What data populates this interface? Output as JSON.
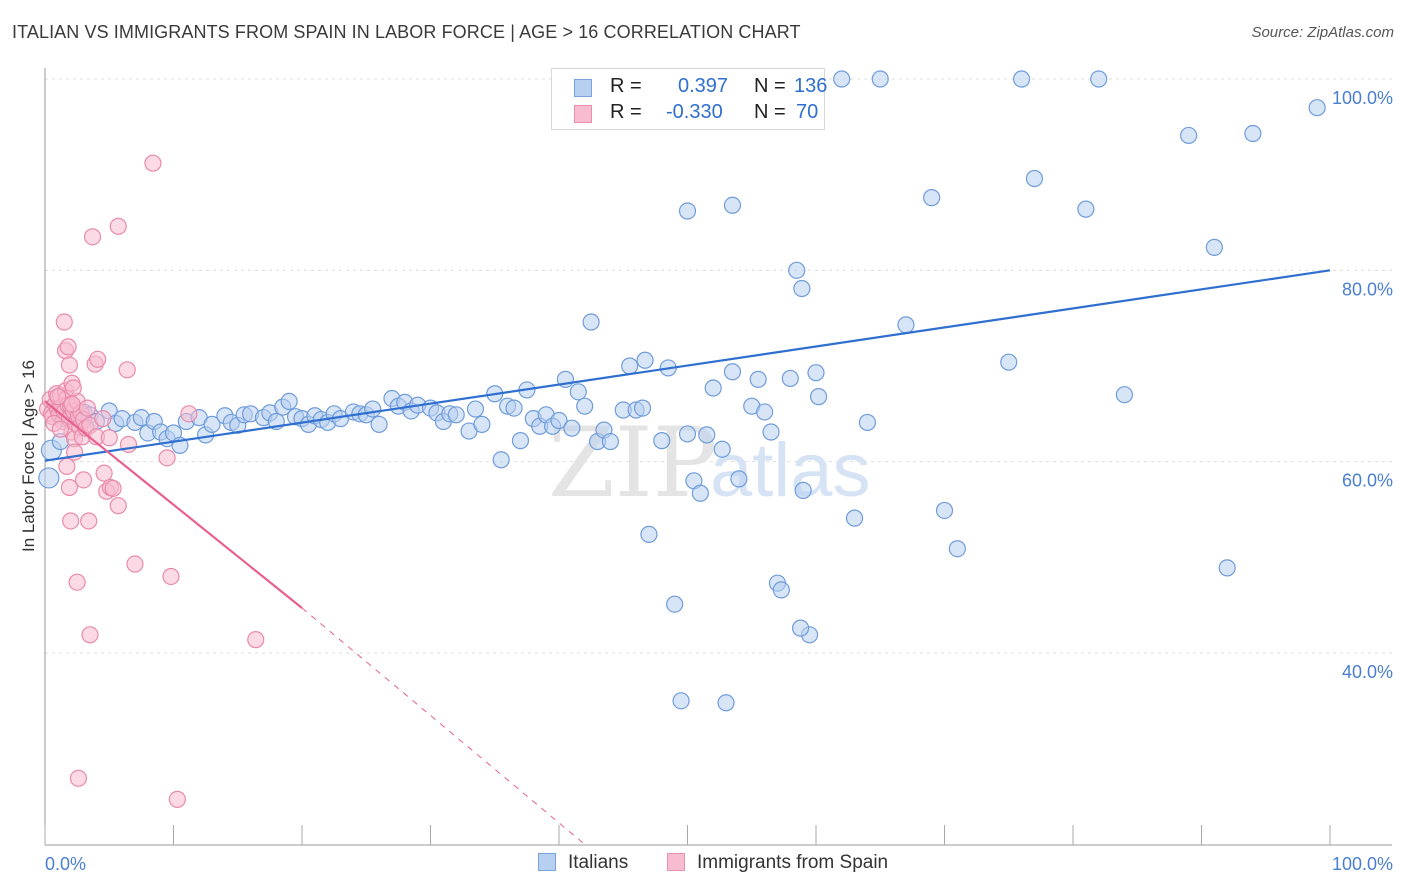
{
  "title": "ITALIAN VS IMMIGRANTS FROM SPAIN IN LABOR FORCE | AGE > 16 CORRELATION CHART",
  "source": "Source: ZipAtlas.com",
  "watermark": {
    "zip": "ZIP",
    "atlas": "atlas"
  },
  "colors": {
    "blue": "#2f6fd0",
    "blue_fill": "#b8d0f0",
    "pink": "#e8608e",
    "pink_fill": "#f7bcd0",
    "grid": "#dddddd",
    "tick_text": "#4a7fd0"
  },
  "legend": {
    "rows": [
      {
        "r_label": "R =",
        "r_value": "0.397",
        "n_label": "N =",
        "n_value": "136"
      },
      {
        "r_label": "R =",
        "r_value": "-0.330",
        "n_label": "N =",
        "n_value": "70"
      }
    ]
  },
  "bottom_legend": {
    "italians": "Italians",
    "spain": "Immigrants from Spain"
  },
  "chart_data": {
    "type": "scatter",
    "title": "ITALIAN VS IMMIGRANTS FROM SPAIN IN LABOR FORCE | AGE > 16 CORRELATION CHART",
    "xlabel": "",
    "ylabel": "In Labor Force | Age > 16",
    "xlim": [
      0,
      100
    ],
    "ylim": [
      20,
      102
    ],
    "x_tick_labels": [
      "0.0%",
      "100.0%"
    ],
    "y_ticks": [
      40,
      60,
      80,
      100
    ],
    "y_tick_labels": [
      "40.0%",
      "60.0%",
      "80.0%",
      "100.0%"
    ],
    "grid": true,
    "series": [
      {
        "name": "Italians",
        "color": "#2f6fd0",
        "points": [
          [
            0.3,
            58.3
          ],
          [
            0.5,
            61.2
          ],
          [
            1.2,
            62.1
          ],
          [
            1.5,
            64.5
          ],
          [
            2.0,
            65.0
          ],
          [
            2.5,
            64.8
          ],
          [
            3.0,
            65.2
          ],
          [
            3.5,
            64.9
          ],
          [
            4.0,
            64.2
          ],
          [
            5.0,
            65.3
          ],
          [
            5.5,
            64.0
          ],
          [
            6.0,
            64.5
          ],
          [
            7.0,
            64.1
          ],
          [
            7.5,
            64.6
          ],
          [
            8.0,
            63.0
          ],
          [
            8.5,
            64.2
          ],
          [
            9.0,
            63.1
          ],
          [
            9.5,
            62.4
          ],
          [
            10.0,
            63.0
          ],
          [
            10.5,
            61.7
          ],
          [
            11.0,
            64.2
          ],
          [
            12.0,
            64.6
          ],
          [
            12.5,
            62.8
          ],
          [
            13.0,
            63.9
          ],
          [
            14.0,
            64.8
          ],
          [
            14.5,
            64.1
          ],
          [
            15.0,
            63.8
          ],
          [
            15.5,
            64.9
          ],
          [
            16.0,
            65.0
          ],
          [
            17.0,
            64.6
          ],
          [
            17.5,
            65.1
          ],
          [
            18.0,
            64.2
          ],
          [
            18.5,
            65.7
          ],
          [
            19.0,
            66.3
          ],
          [
            19.5,
            64.7
          ],
          [
            20.0,
            64.5
          ],
          [
            20.5,
            63.9
          ],
          [
            21.0,
            64.8
          ],
          [
            21.5,
            64.4
          ],
          [
            22.0,
            64.1
          ],
          [
            22.5,
            65.0
          ],
          [
            23.0,
            64.5
          ],
          [
            24.0,
            65.2
          ],
          [
            24.5,
            65.0
          ],
          [
            25.0,
            64.9
          ],
          [
            25.5,
            65.5
          ],
          [
            26.0,
            63.9
          ],
          [
            27.0,
            66.6
          ],
          [
            27.5,
            65.8
          ],
          [
            28.0,
            66.2
          ],
          [
            28.5,
            65.3
          ],
          [
            29.0,
            65.9
          ],
          [
            30.0,
            65.6
          ],
          [
            30.5,
            65.1
          ],
          [
            31.0,
            64.2
          ],
          [
            31.5,
            65.0
          ],
          [
            32.0,
            64.9
          ],
          [
            33.0,
            63.2
          ],
          [
            33.5,
            65.5
          ],
          [
            34.0,
            63.9
          ],
          [
            35.0,
            67.1
          ],
          [
            35.5,
            60.2
          ],
          [
            36.0,
            65.8
          ],
          [
            36.5,
            65.6
          ],
          [
            37.0,
            62.2
          ],
          [
            37.5,
            67.5
          ],
          [
            38.0,
            64.5
          ],
          [
            38.5,
            63.7
          ],
          [
            39.0,
            64.9
          ],
          [
            39.5,
            63.7
          ],
          [
            40.0,
            64.3
          ],
          [
            40.5,
            68.6
          ],
          [
            41.0,
            63.5
          ],
          [
            41.5,
            67.3
          ],
          [
            42.0,
            65.8
          ],
          [
            43.0,
            62.1
          ],
          [
            43.5,
            63.3
          ],
          [
            44.0,
            62.1
          ],
          [
            45.0,
            65.4
          ],
          [
            45.5,
            70.0
          ],
          [
            46.0,
            65.4
          ],
          [
            46.5,
            65.6
          ],
          [
            47.0,
            52.4
          ],
          [
            48.0,
            62.2
          ],
          [
            48.5,
            69.8
          ],
          [
            49.0,
            45.1
          ],
          [
            49.5,
            35.0
          ],
          [
            50.0,
            62.9
          ],
          [
            50.5,
            58.0
          ],
          [
            51.0,
            56.7
          ],
          [
            52.0,
            67.7
          ],
          [
            53.0,
            34.8
          ],
          [
            53.5,
            69.4
          ],
          [
            54.0,
            58.2
          ],
          [
            55.0,
            65.8
          ],
          [
            55.5,
            68.6
          ],
          [
            56.0,
            65.2
          ],
          [
            56.5,
            63.1
          ],
          [
            57.0,
            47.3
          ],
          [
            58.0,
            68.7
          ],
          [
            58.5,
            80.0
          ],
          [
            59.0,
            57.0
          ],
          [
            59.5,
            41.9
          ],
          [
            60.0,
            69.3
          ],
          [
            62.0,
            100.0
          ],
          [
            65.0,
            100.0
          ],
          [
            42.5,
            74.6
          ],
          [
            48.6,
            100.0
          ],
          [
            50.1,
            100.0
          ],
          [
            56.0,
            100.0
          ],
          [
            50.0,
            86.2
          ],
          [
            53.5,
            86.8
          ],
          [
            58.9,
            78.1
          ],
          [
            60.2,
            66.8
          ],
          [
            63.0,
            54.1
          ],
          [
            64.0,
            64.1
          ],
          [
            67.0,
            74.3
          ],
          [
            69.0,
            87.6
          ],
          [
            70.0,
            54.9
          ],
          [
            71.0,
            50.9
          ],
          [
            75.0,
            70.4
          ],
          [
            76.0,
            100.0
          ],
          [
            77.0,
            89.6
          ],
          [
            81.0,
            86.4
          ],
          [
            82.0,
            100.0
          ],
          [
            84.0,
            67.0
          ],
          [
            89.0,
            94.1
          ],
          [
            91.0,
            82.4
          ],
          [
            92.0,
            48.9
          ],
          [
            94.0,
            94.3
          ],
          [
            99.0,
            97.0
          ],
          [
            46.7,
            70.6
          ],
          [
            51.5,
            62.8
          ],
          [
            57.3,
            46.6
          ],
          [
            58.8,
            42.6
          ],
          [
            52.7,
            61.3
          ]
        ]
      },
      {
        "name": "Immigrants from Spain",
        "color": "#e8608e",
        "points": [
          [
            0.2,
            65.5
          ],
          [
            0.4,
            66.5
          ],
          [
            0.5,
            65.0
          ],
          [
            0.6,
            64.7
          ],
          [
            0.8,
            66.0
          ],
          [
            0.9,
            67.1
          ],
          [
            1.0,
            65.4
          ],
          [
            1.1,
            64.9
          ],
          [
            1.2,
            66.9
          ],
          [
            1.3,
            65.7
          ],
          [
            1.4,
            64.2
          ],
          [
            1.5,
            65.2
          ],
          [
            1.6,
            67.4
          ],
          [
            1.7,
            66.6
          ],
          [
            1.8,
            65.9
          ],
          [
            1.9,
            64.5
          ],
          [
            2.0,
            65.8
          ],
          [
            2.1,
            63.1
          ],
          [
            2.2,
            65.3
          ],
          [
            2.3,
            62.4
          ],
          [
            2.4,
            64.0
          ],
          [
            2.5,
            66.3
          ],
          [
            2.6,
            64.8
          ],
          [
            2.7,
            63.6
          ],
          [
            2.8,
            65.1
          ],
          [
            2.9,
            62.6
          ],
          [
            3.0,
            64.4
          ],
          [
            3.2,
            63.5
          ],
          [
            3.5,
            63.8
          ],
          [
            1.5,
            74.6
          ],
          [
            1.6,
            71.6
          ],
          [
            1.8,
            72.0
          ],
          [
            1.9,
            70.1
          ],
          [
            2.1,
            68.2
          ],
          [
            2.2,
            67.7
          ],
          [
            1.7,
            59.5
          ],
          [
            1.9,
            57.3
          ],
          [
            2.0,
            53.8
          ],
          [
            2.5,
            47.4
          ],
          [
            2.6,
            26.9
          ],
          [
            3.0,
            58.1
          ],
          [
            3.4,
            53.8
          ],
          [
            3.5,
            41.9
          ],
          [
            3.9,
            70.2
          ],
          [
            4.1,
            70.7
          ],
          [
            4.6,
            58.8
          ],
          [
            4.8,
            56.9
          ],
          [
            5.1,
            57.3
          ],
          [
            5.3,
            57.2
          ],
          [
            5.7,
            55.4
          ],
          [
            6.4,
            69.6
          ],
          [
            7.0,
            49.3
          ],
          [
            8.4,
            91.2
          ],
          [
            9.8,
            48.0
          ],
          [
            10.3,
            24.7
          ],
          [
            11.2,
            65.0
          ],
          [
            16.4,
            41.4
          ],
          [
            3.7,
            83.5
          ],
          [
            5.7,
            84.6
          ],
          [
            4.0,
            62.6
          ],
          [
            6.5,
            61.8
          ],
          [
            9.5,
            60.4
          ],
          [
            2.1,
            66.0
          ],
          [
            0.7,
            64.0
          ],
          [
            1.0,
            66.8
          ],
          [
            1.2,
            63.4
          ],
          [
            2.3,
            61.0
          ],
          [
            3.3,
            65.6
          ],
          [
            5.0,
            62.5
          ],
          [
            4.5,
            64.5
          ]
        ]
      }
    ],
    "trendlines": [
      {
        "series": "Italians",
        "x": [
          0,
          100
        ],
        "y": [
          60.1,
          80.0
        ],
        "style": "solid"
      },
      {
        "series": "Immigrants from Spain",
        "x": [
          0,
          20
        ],
        "y": [
          66.3,
          44.7
        ],
        "style": "solid"
      },
      {
        "series": "Immigrants from Spain",
        "x": [
          20,
          42
        ],
        "y": [
          44.7,
          20.0
        ],
        "style": "dashed"
      }
    ]
  }
}
